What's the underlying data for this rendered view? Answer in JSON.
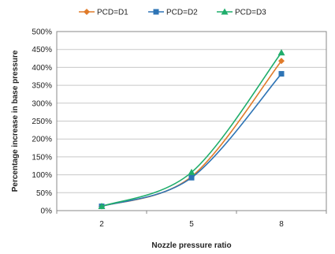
{
  "chart_data": {
    "type": "line",
    "x": [
      "2",
      "5",
      "8"
    ],
    "xlabel": "Nozzle pressure ratio",
    "ylabel": "Percentage increase in base pressure",
    "ylim": [
      0,
      500
    ],
    "y_ticks": [
      "0%",
      "50%",
      "100%",
      "150%",
      "200%",
      "250%",
      "300%",
      "350%",
      "400%",
      "450%",
      "500%"
    ],
    "grid": "horizontal",
    "legend_position": "top",
    "series": [
      {
        "name": "PCD=D1",
        "values": [
          12,
          95,
          418
        ],
        "color": "#e07b2a",
        "marker": "diamond"
      },
      {
        "name": "PCD=D2",
        "values": [
          12,
          92,
          382
        ],
        "color": "#2e74b5",
        "marker": "square"
      },
      {
        "name": "PCD=D3",
        "values": [
          12,
          107,
          441
        ],
        "color": "#1fad6b",
        "marker": "triangle"
      }
    ]
  }
}
